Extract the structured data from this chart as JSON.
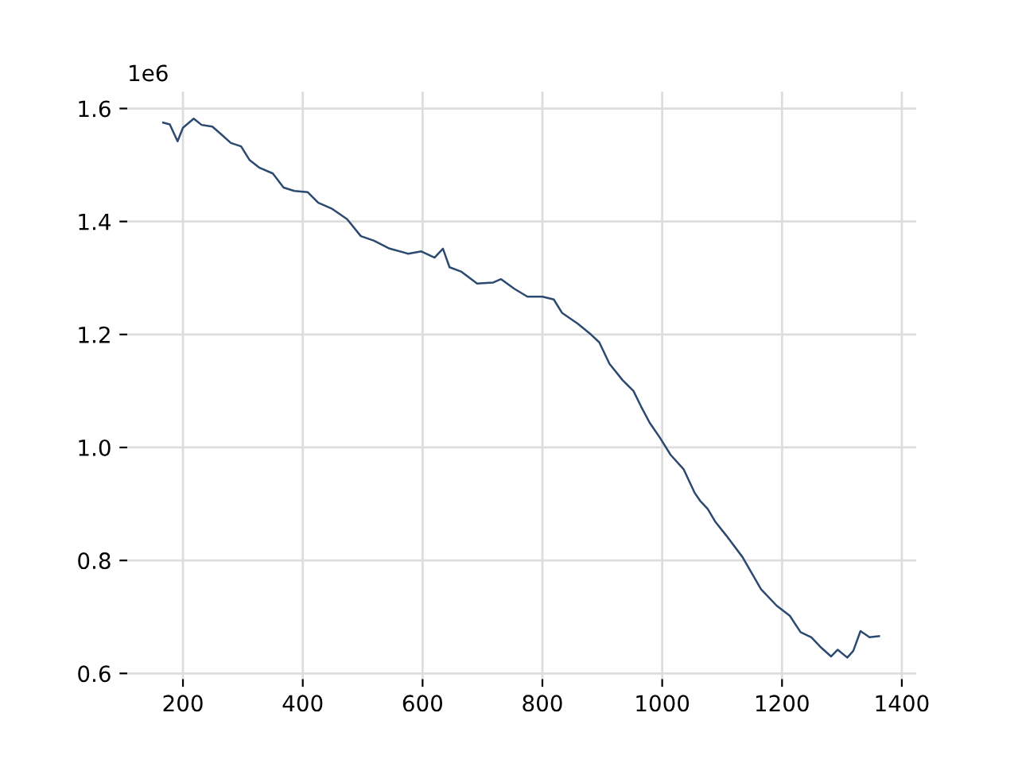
{
  "chart_data": {
    "type": "line",
    "x": [
      167,
      178,
      191,
      200,
      218,
      231,
      249,
      262,
      280,
      297,
      311,
      328,
      350,
      368,
      386,
      408,
      426,
      448,
      474,
      497,
      519,
      545,
      576,
      598,
      620,
      634,
      645,
      665,
      691,
      718,
      731,
      753,
      775,
      800,
      819,
      833,
      859,
      881,
      895,
      912,
      934,
      952,
      965,
      979,
      997,
      1014,
      1036,
      1054,
      1063,
      1076,
      1089,
      1107,
      1134,
      1165,
      1191,
      1213,
      1231,
      1249,
      1266,
      1282,
      1293,
      1309,
      1319,
      1331,
      1346,
      1362
    ],
    "series": [
      {
        "color": "#2c4a70",
        "values": [
          1.575,
          1.572,
          1.542,
          1.566,
          1.582,
          1.571,
          1.568,
          1.556,
          1.539,
          1.533,
          1.509,
          1.495,
          1.485,
          1.46,
          1.454,
          1.452,
          1.433,
          1.423,
          1.404,
          1.374,
          1.366,
          1.352,
          1.343,
          1.347,
          1.336,
          1.352,
          1.319,
          1.311,
          1.29,
          1.292,
          1.298,
          1.281,
          1.267,
          1.267,
          1.262,
          1.238,
          1.219,
          1.2,
          1.186,
          1.148,
          1.119,
          1.1,
          1.072,
          1.044,
          1.016,
          0.987,
          0.961,
          0.92,
          0.906,
          0.891,
          0.868,
          0.844,
          0.806,
          0.749,
          0.72,
          0.702,
          0.673,
          0.664,
          0.645,
          0.63,
          0.642,
          0.628,
          0.64,
          0.675,
          0.664,
          0.666
        ]
      }
    ],
    "xlim": [
      107,
      1424
    ],
    "ylim": [
      0.59,
      1.63
    ],
    "xticks": [
      200,
      400,
      600,
      800,
      1000,
      1200,
      1400
    ],
    "yticks": [
      0.6,
      0.8,
      {
        "value": 1,
        "label": "1.0"
      },
      1.2,
      1.4,
      1.6
    ],
    "annotations": [
      "1e6"
    ],
    "grid": true,
    "legend": false
  }
}
